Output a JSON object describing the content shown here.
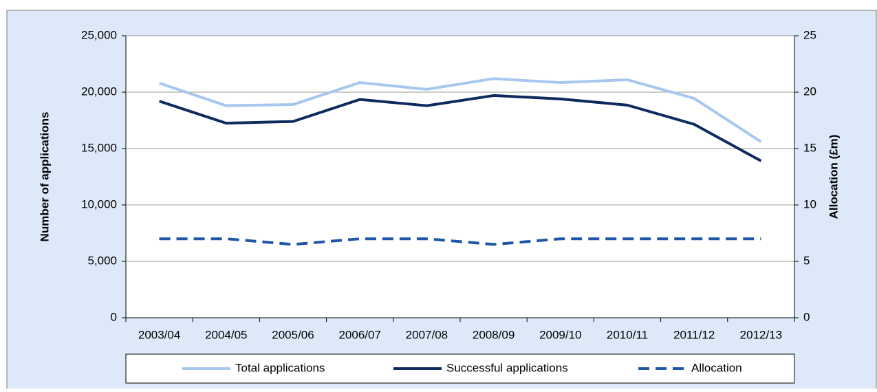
{
  "chart_data": {
    "type": "line",
    "categories": [
      "2003/04",
      "2004/05",
      "2005/06",
      "2006/07",
      "2007/08",
      "2008/09",
      "2009/10",
      "2010/11",
      "2011/12",
      "2012/13"
    ],
    "y_label": "Number of applications",
    "y2_label": "Allocation (£m)",
    "ylim": [
      0,
      25000
    ],
    "yticks": [
      0,
      {
        "value": 5000,
        "label": "5,000"
      },
      {
        "value": 10000,
        "label": "10,000"
      },
      {
        "value": 15000,
        "label": "15,000"
      },
      {
        "value": 20000,
        "label": "20,000"
      },
      {
        "value": 25000,
        "label": "25,000"
      }
    ],
    "y2lim": [
      0,
      25
    ],
    "y2ticks": [
      0,
      5,
      10,
      15,
      20,
      25
    ],
    "legend": "bottom",
    "series": [
      {
        "name": "Total applications",
        "color": "#a6c8ef",
        "dash": false,
        "values": [
          20800,
          18800,
          18900,
          20850,
          20250,
          21200,
          20850,
          21100,
          19450,
          15600
        ]
      },
      {
        "name": "Successful applications",
        "color": "#0d2b5e",
        "dash": false,
        "values": [
          19200,
          17250,
          17400,
          19350,
          18800,
          19700,
          19400,
          18850,
          17150,
          13900
        ]
      },
      {
        "name": "Allocation",
        "color": "#1f56a7",
        "dash": true,
        "axis": "y2",
        "values": [
          7,
          7,
          6.5,
          7,
          7,
          6.5,
          7,
          7,
          7,
          7
        ]
      }
    ]
  }
}
